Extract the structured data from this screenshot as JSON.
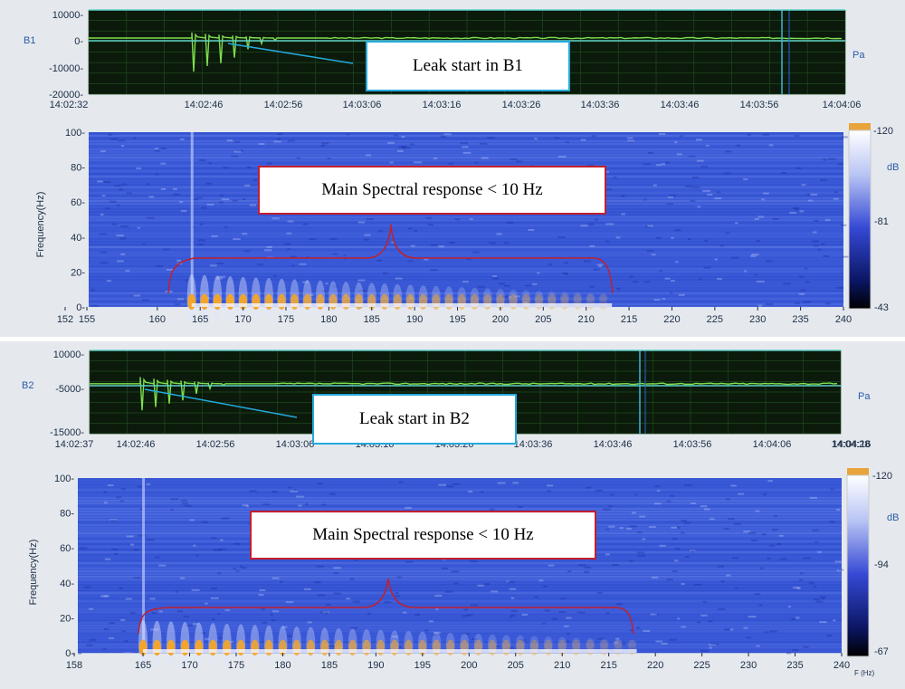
{
  "panels": [
    {
      "channel": "B1",
      "unit": "Pa",
      "callout": "Leak start in B1",
      "spectral_callout": "Main Spectral response < 10 Hz",
      "colorbar_labels": [
        "-120",
        "dB",
        "-81",
        "-43"
      ]
    },
    {
      "channel": "B2",
      "unit": "Pa",
      "callout": "Leak start in B2",
      "spectral_callout": "Main Spectral response < 10 Hz",
      "colorbar_labels": [
        "-120",
        "dB",
        "-94",
        "-67"
      ]
    }
  ],
  "colors": {
    "waveform_bg": "#0b1a0b",
    "waveform": "#7ee04c",
    "spectrogram_bg": "#3b5ad8",
    "low_freq_response": "#f3a52b",
    "leak_callout_border": "#25a9dc",
    "spectral_callout_border": "#c0202e"
  },
  "chart_data": [
    {
      "type": "line",
      "series": [
        {
          "name": "B1",
          "values": [
            0,
            -12000,
            2000,
            -10000,
            1500,
            -9000,
            1200,
            -7000,
            900,
            -4000,
            600,
            -2000,
            300,
            -800,
            0,
            0,
            0,
            0,
            0,
            0
          ]
        }
      ],
      "x_tick_labels": [
        "14:02:32",
        "14:02:46",
        "14:02:56",
        "14:03:06",
        "14:03:16",
        "14:03:26",
        "14:03:36",
        "14:03:46",
        "14:03:56",
        "14:04:06"
      ],
      "y_tick_labels": [
        "10000",
        "0",
        "-10000",
        "-20000"
      ],
      "ylim": [
        -20000,
        10000
      ],
      "ylabel": "B1",
      "unit": "Pa",
      "grid": true
    },
    {
      "type": "heatmap",
      "xlim": [
        152,
        240
      ],
      "ylim": [
        0,
        100
      ],
      "x_tick_labels": [
        "152",
        "155",
        "160",
        "165",
        "170",
        "175",
        "180",
        "185",
        "190",
        "195",
        "200",
        "205",
        "210",
        "215",
        "220",
        "225",
        "230",
        "235",
        "240"
      ],
      "y_tick_labels": [
        "100",
        "80",
        "60",
        "40",
        "20",
        "0"
      ],
      "ylabel": "Frequency(Hz)",
      "colorbar_ticks": [
        "-120",
        "-81",
        "-43"
      ],
      "colorbar_unit": "dB",
      "annotation": "Main Spectral response < 10 Hz",
      "response_band_hz": [
        0,
        10
      ],
      "response_x_range": [
        164,
        213
      ]
    },
    {
      "type": "line",
      "series": [
        {
          "name": "B2",
          "values": [
            0,
            -8000,
            2000,
            -7000,
            1500,
            -6000,
            1200,
            -5000,
            900,
            -3000,
            600,
            -1500,
            300,
            -500,
            0,
            0,
            0,
            0,
            0,
            0
          ]
        }
      ],
      "x_tick_labels": [
        "14:02:37",
        "14:02:46",
        "14:02:56",
        "14:03:06",
        "14:03:16",
        "14:03:26",
        "14:03:36",
        "14:03:46",
        "14:03:56",
        "14:04:06",
        "14:04:16",
        "14:04:28"
      ],
      "y_tick_labels": [
        "10000",
        "-5000",
        "-15000"
      ],
      "ylim": [
        -15000,
        10000
      ],
      "ylabel": "B2",
      "unit": "Pa",
      "grid": true
    },
    {
      "type": "heatmap",
      "xlim": [
        158,
        240
      ],
      "ylim": [
        0,
        100
      ],
      "x_tick_labels": [
        "158",
        "165",
        "170",
        "175",
        "180",
        "185",
        "190",
        "195",
        "200",
        "205",
        "210",
        "215",
        "220",
        "225",
        "230",
        "235",
        "240"
      ],
      "y_tick_labels": [
        "100",
        "80",
        "60",
        "40",
        "20",
        "0"
      ],
      "ylabel": "Frequency(Hz)",
      "x_unit_label": "F (Hz)",
      "colorbar_ticks": [
        "-120",
        "-94",
        "-67"
      ],
      "colorbar_unit": "dB",
      "annotation": "Main Spectral response < 10 Hz",
      "response_band_hz": [
        0,
        10
      ],
      "response_x_range": [
        165,
        218
      ]
    }
  ]
}
